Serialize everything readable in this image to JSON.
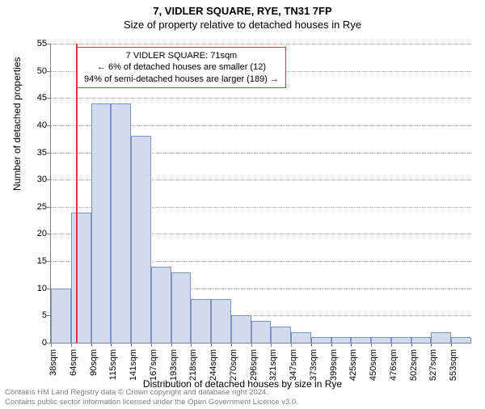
{
  "title": "7, VIDLER SQUARE, RYE, TN31 7FP",
  "subtitle": "Size of property relative to detached houses in Rye",
  "ylabel": "Number of detached properties",
  "xlabel": "Distribution of detached houses by size in Rye",
  "footer_line1": "Contains HM Land Registry data © Crown copyright and database right 2024.",
  "footer_line2": "Contains public sector information licensed under the Open Government Licence v3.0.",
  "chart": {
    "type": "histogram",
    "background_color": "#ffffff",
    "grid_color": "#b0b0b0",
    "axis_color": "#808080",
    "bar_fill": "#d2dcee",
    "bar_stroke": "#7d93c4",
    "refline_color": "#d83a3a",
    "annotation_border": "#d83a3a",
    "ylim": [
      0,
      55
    ],
    "ytick_step": 5,
    "x_start": 38,
    "x_step": 26,
    "x_unit": "sqm",
    "bar_values": [
      10,
      24,
      44,
      44,
      38,
      14,
      13,
      8,
      8,
      5,
      4,
      3,
      2,
      1,
      1,
      1,
      1,
      1,
      1,
      2,
      1
    ],
    "reference_x": 71,
    "xtick_labels": [
      "38sqm",
      "64sqm",
      "90sqm",
      "115sqm",
      "141sqm",
      "167sqm",
      "193sqm",
      "218sqm",
      "244sqm",
      "270sqm",
      "296sqm",
      "321sqm",
      "347sqm",
      "373sqm",
      "399sqm",
      "425sqm",
      "450sqm",
      "476sqm",
      "502sqm",
      "527sqm",
      "553sqm"
    ],
    "annotation": {
      "line1": "7 VIDLER SQUARE: 71sqm",
      "line2": "← 6% of detached houses are smaller (12)",
      "line3": "94% of semi-detached houses are larger (189) →"
    },
    "title_fontsize": 13,
    "label_fontsize": 12,
    "tick_fontsize": 11
  }
}
